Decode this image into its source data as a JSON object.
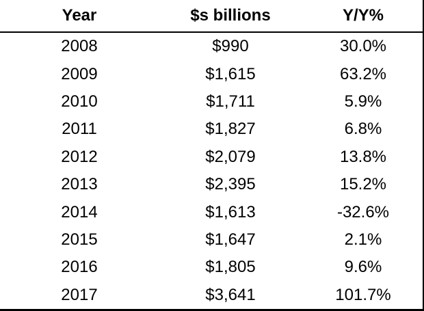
{
  "chart_data": {
    "type": "table",
    "columns": [
      "Year",
      "$s billions",
      "Y/Y%"
    ],
    "rows": [
      [
        "2008",
        "$990",
        "30.0%"
      ],
      [
        "2009",
        "$1,615",
        "63.2%"
      ],
      [
        "2010",
        "$1,711",
        "5.9%"
      ],
      [
        "2011",
        "$1,827",
        "6.8%"
      ],
      [
        "2012",
        "$2,079",
        "13.8%"
      ],
      [
        "2013",
        "$2,395",
        "15.2%"
      ],
      [
        "2014",
        "$1,613",
        "-32.6%"
      ],
      [
        "2015",
        "$1,647",
        "2.1%"
      ],
      [
        "2016",
        "$1,805",
        "9.6%"
      ],
      [
        "2017",
        "$3,641",
        "101.7%"
      ]
    ]
  }
}
